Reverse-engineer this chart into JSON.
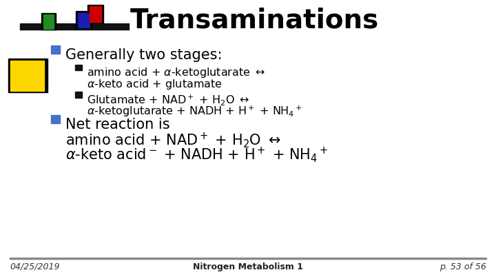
{
  "title": "Transaminations",
  "background_color": "#ffffff",
  "title_fontsize": 28,
  "text_color": "#000000",
  "bullet_color": "#4472C4",
  "footer_left": "04/25/2019",
  "footer_center": "Nitrogen Metabolism 1",
  "footer_right": "p. 53 of 56"
}
